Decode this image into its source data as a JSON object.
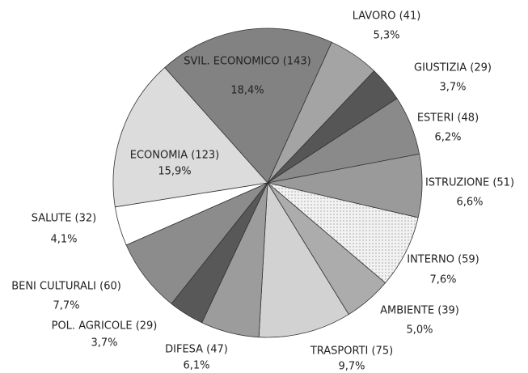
{
  "chart_data": {
    "type": "pie",
    "categories": [
      "LAVORO (41)",
      "GIUSTIZIA (29)",
      "ESTERI (48)",
      "ISTRUZIONE (51)",
      "INTERNO (59)",
      "AMBIENTE (39)",
      "TRASPORTI (75)",
      "DIFESA (47)",
      "POL. AGRICOLE (29)",
      "BENI CULTURALI (60)",
      "SALUTE (32)",
      "ECONOMIA (123)",
      "SVIL. ECONOMICO (143)"
    ],
    "values": [
      5.3,
      3.7,
      6.2,
      6.6,
      7.6,
      5.0,
      9.7,
      6.1,
      3.7,
      7.7,
      4.1,
      15.9,
      18.4
    ],
    "value_labels": [
      "5,3%",
      "3,7%",
      "6,2%",
      "6,6%",
      "7,6%",
      "5,0%",
      "9,7%",
      "6,1%",
      "3,7%",
      "7,7%",
      "4,1%",
      "15,9%",
      "18,4%"
    ],
    "colors": [
      "#a4a4a4",
      "#565656",
      "#8a8a8a",
      "#9a9a9a",
      "#f2f2f2",
      "#acacac",
      "#d2d2d2",
      "#9c9c9c",
      "#585858",
      "#8c8c8c",
      "#ffffff",
      "#dcdcdc",
      "#828282"
    ]
  }
}
